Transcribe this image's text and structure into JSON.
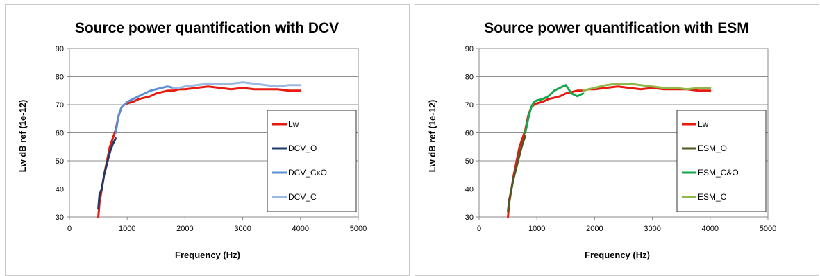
{
  "chart_data": [
    {
      "type": "line",
      "title": "Source power quantification with DCV",
      "xlabel": "Frequency (Hz)",
      "ylabel": "Lw dB ref (1e-12)",
      "xlim": [
        0,
        5000
      ],
      "ylim": [
        30,
        90
      ],
      "x_ticks": [
        0,
        1000,
        2000,
        3000,
        4000,
        5000
      ],
      "y_ticks": [
        30,
        40,
        50,
        60,
        70,
        80,
        90
      ],
      "grid": "horizontal",
      "legend_position": "right",
      "series": [
        {
          "name": "Lw",
          "color": "#e8190f",
          "points": [
            [
              500,
              30
            ],
            [
              520,
              35
            ],
            [
              560,
              40
            ],
            [
              600,
              45
            ],
            [
              650,
              50
            ],
            [
              700,
              55
            ],
            [
              750,
              58
            ],
            [
              800,
              61
            ],
            [
              850,
              66
            ],
            [
              900,
              69
            ],
            [
              950,
              70
            ],
            [
              1000,
              70.5
            ],
            [
              1100,
              71
            ],
            [
              1200,
              72
            ],
            [
              1300,
              72.5
            ],
            [
              1400,
              73
            ],
            [
              1500,
              74
            ],
            [
              1600,
              74.5
            ],
            [
              1700,
              75
            ],
            [
              1800,
              75
            ],
            [
              1900,
              75.5
            ],
            [
              2000,
              75.5
            ],
            [
              2200,
              76
            ],
            [
              2400,
              76.5
            ],
            [
              2600,
              76
            ],
            [
              2800,
              75.5
            ],
            [
              3000,
              76
            ],
            [
              3200,
              75.5
            ],
            [
              3400,
              75.5
            ],
            [
              3600,
              75.5
            ],
            [
              3800,
              75
            ],
            [
              4000,
              75
            ]
          ]
        },
        {
          "name": "DCV_O",
          "color": "#1f3b6a",
          "points": [
            [
              500,
              33
            ],
            [
              520,
              38
            ],
            [
              560,
              40
            ],
            [
              600,
              45
            ],
            [
              650,
              49
            ],
            [
              700,
              53
            ],
            [
              750,
              56
            ],
            [
              800,
              58
            ]
          ]
        },
        {
          "name": "DCV_CxO",
          "color": "#5b8fd4",
          "points": [
            [
              800,
              60
            ],
            [
              850,
              66
            ],
            [
              900,
              69
            ],
            [
              950,
              70
            ],
            [
              1000,
              71
            ],
            [
              1100,
              72
            ],
            [
              1200,
              73
            ],
            [
              1300,
              74
            ],
            [
              1400,
              75
            ],
            [
              1500,
              75.5
            ],
            [
              1600,
              76
            ],
            [
              1700,
              76.5
            ],
            [
              1800,
              76
            ]
          ]
        },
        {
          "name": "DCV_C",
          "color": "#9ab8e0",
          "points": [
            [
              1800,
              76
            ],
            [
              1900,
              76
            ],
            [
              2000,
              76.5
            ],
            [
              2200,
              77
            ],
            [
              2400,
              77.5
            ],
            [
              2600,
              77.5
            ],
            [
              2800,
              77.5
            ],
            [
              3000,
              78
            ],
            [
              3200,
              77.5
            ],
            [
              3400,
              77
            ],
            [
              3600,
              76.5
            ],
            [
              3800,
              77
            ],
            [
              4000,
              77
            ]
          ]
        }
      ]
    },
    {
      "type": "line",
      "title": "Source power quantification with ESM",
      "xlabel": "Frequency (Hz)",
      "ylabel": "Lw dB ref (1e-12)",
      "xlim": [
        0,
        5000
      ],
      "ylim": [
        30,
        90
      ],
      "x_ticks": [
        0,
        1000,
        2000,
        3000,
        4000,
        5000
      ],
      "y_ticks": [
        30,
        40,
        50,
        60,
        70,
        80,
        90
      ],
      "grid": "horizontal",
      "legend_position": "right",
      "series": [
        {
          "name": "Lw",
          "color": "#e8190f",
          "points": [
            [
              500,
              30
            ],
            [
              520,
              35
            ],
            [
              560,
              40
            ],
            [
              600,
              45
            ],
            [
              650,
              50
            ],
            [
              700,
              55
            ],
            [
              750,
              58
            ],
            [
              800,
              61
            ],
            [
              850,
              66
            ],
            [
              900,
              69
            ],
            [
              950,
              70
            ],
            [
              1000,
              70.5
            ],
            [
              1100,
              71
            ],
            [
              1200,
              72
            ],
            [
              1300,
              72.5
            ],
            [
              1400,
              73
            ],
            [
              1500,
              74
            ],
            [
              1600,
              74.5
            ],
            [
              1700,
              75
            ],
            [
              1800,
              75
            ],
            [
              1900,
              75.5
            ],
            [
              2000,
              75.5
            ],
            [
              2200,
              76
            ],
            [
              2400,
              76.5
            ],
            [
              2600,
              76
            ],
            [
              2800,
              75.5
            ],
            [
              3000,
              76
            ],
            [
              3200,
              75.5
            ],
            [
              3400,
              75.5
            ],
            [
              3600,
              75.5
            ],
            [
              3800,
              75
            ],
            [
              4000,
              75
            ]
          ]
        },
        {
          "name": "ESM_O",
          "color": "#4a5a22",
          "points": [
            [
              500,
              32
            ],
            [
              520,
              36
            ],
            [
              560,
              40
            ],
            [
              600,
              44
            ],
            [
              650,
              48
            ],
            [
              700,
              52
            ],
            [
              750,
              56
            ],
            [
              800,
              59
            ]
          ]
        },
        {
          "name": "ESM_C&O",
          "color": "#12a84a",
          "points": [
            [
              800,
              60
            ],
            [
              850,
              65
            ],
            [
              900,
              69
            ],
            [
              950,
              71
            ],
            [
              1000,
              71.5
            ],
            [
              1100,
              72
            ],
            [
              1200,
              73
            ],
            [
              1300,
              75
            ],
            [
              1400,
              76
            ],
            [
              1500,
              77
            ],
            [
              1600,
              74
            ],
            [
              1700,
              73
            ],
            [
              1800,
              74
            ]
          ]
        },
        {
          "name": "ESM_C",
          "color": "#8fb84a",
          "points": [
            [
              1800,
              75
            ],
            [
              1900,
              75.5
            ],
            [
              2000,
              76
            ],
            [
              2200,
              77
            ],
            [
              2400,
              77.5
            ],
            [
              2600,
              77.5
            ],
            [
              2800,
              77
            ],
            [
              3000,
              76.5
            ],
            [
              3200,
              76
            ],
            [
              3400,
              76
            ],
            [
              3600,
              75.5
            ],
            [
              3800,
              76
            ],
            [
              4000,
              76
            ]
          ]
        }
      ]
    }
  ]
}
